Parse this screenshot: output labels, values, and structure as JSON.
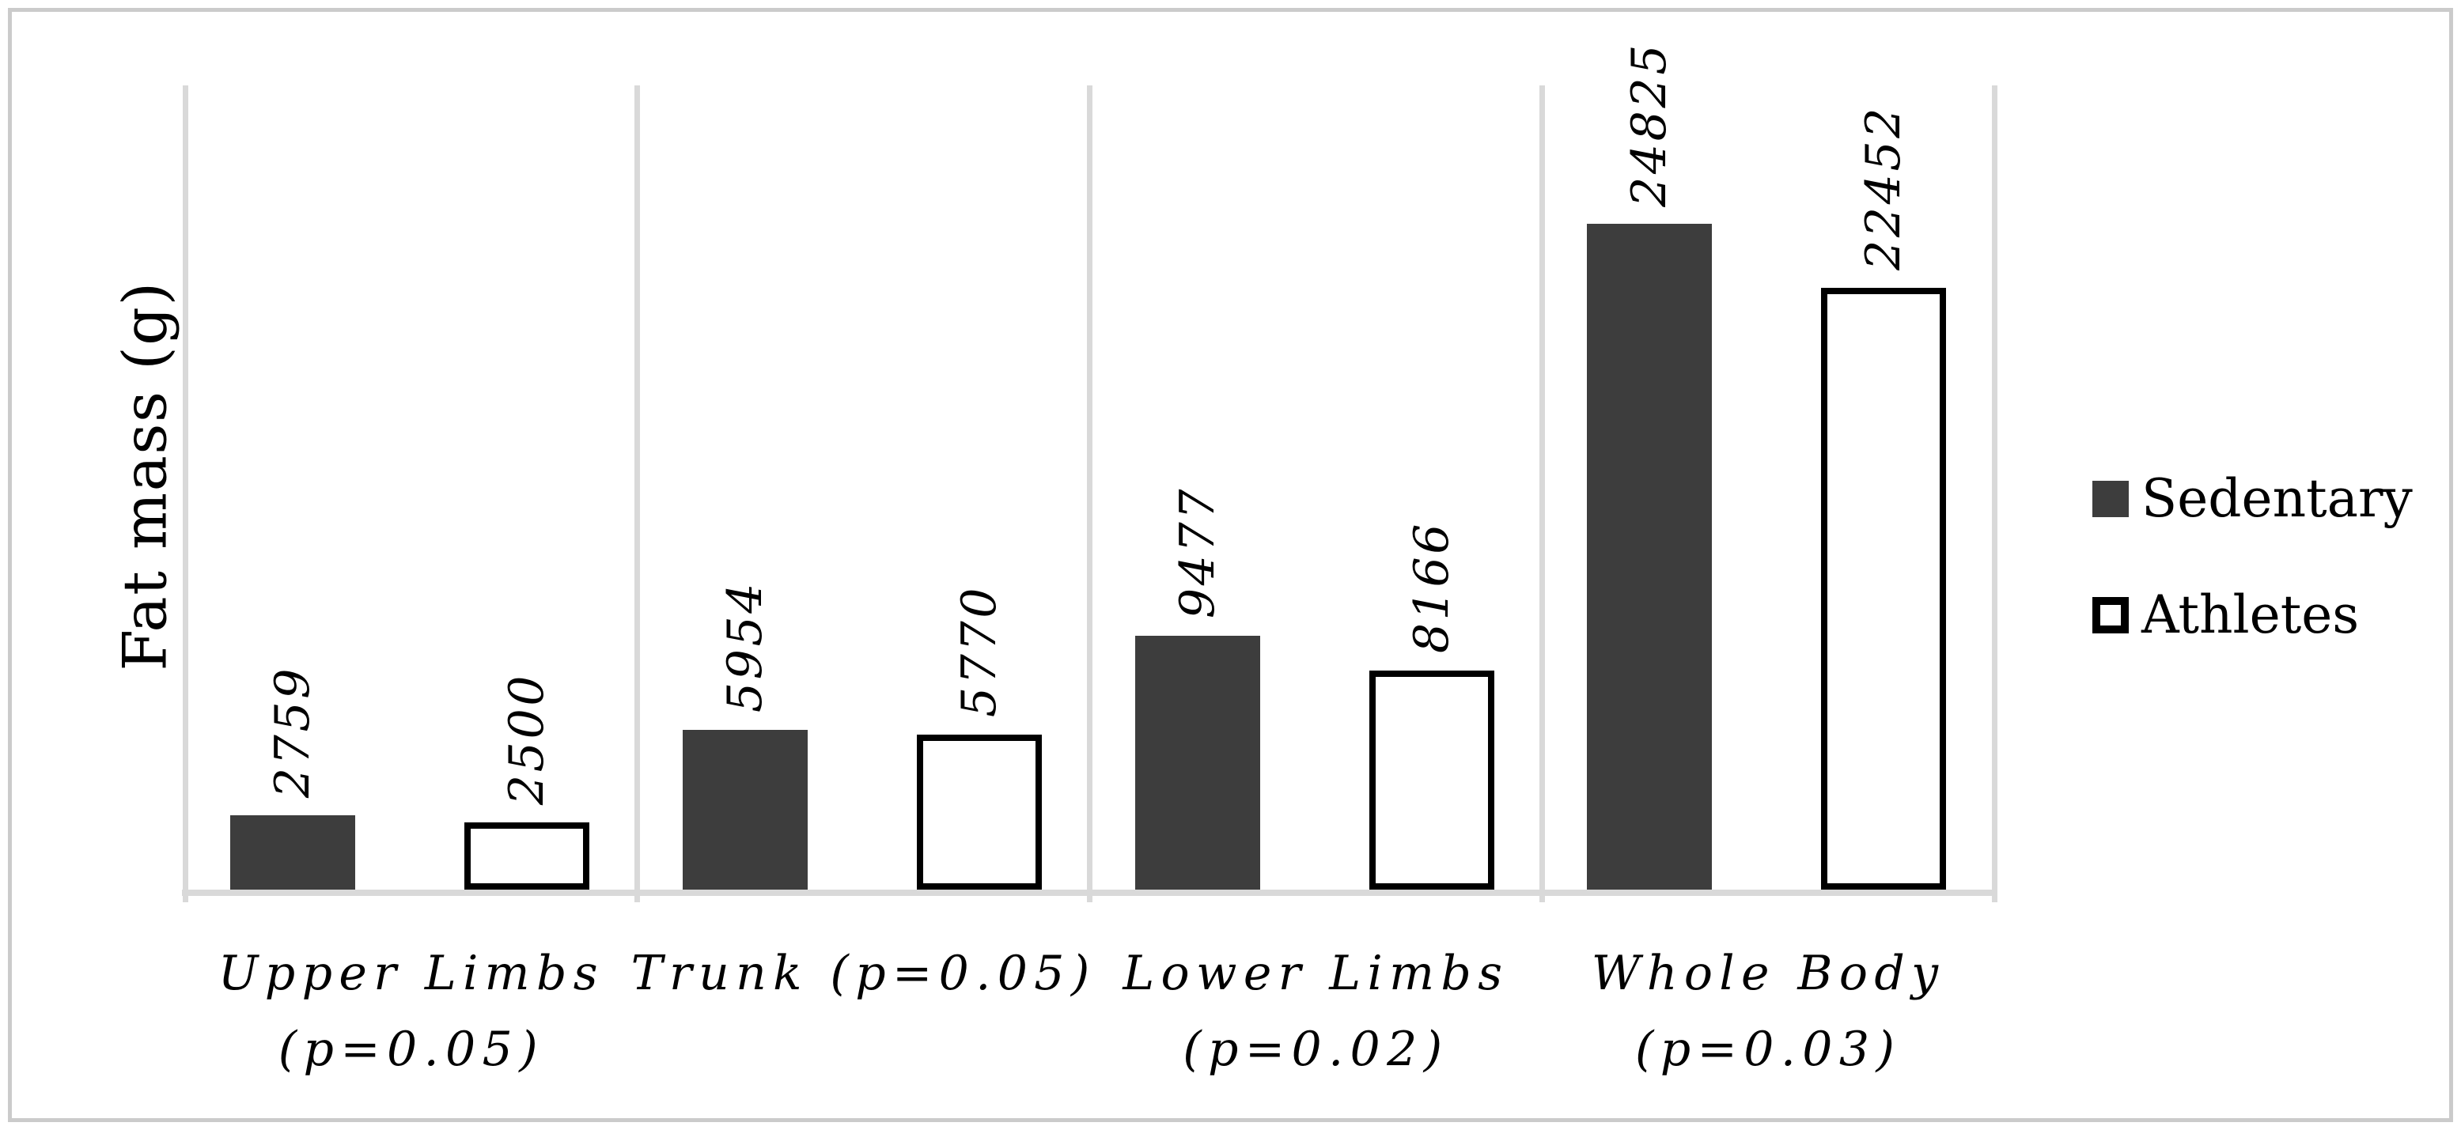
{
  "chart_data": {
    "type": "bar",
    "title": "",
    "ylabel": "Fat mass (g)",
    "xlabel": "",
    "ylim": [
      0,
      30000
    ],
    "grid": "vertical-category-separators",
    "legend_position": "right",
    "categories": [
      "Upper Limbs (p=0.05)",
      "Trunk (p=0.05)",
      "Lower Limbs (p=0.02)",
      "Whole Body (p=0.03)"
    ],
    "category_lines": [
      [
        "Upper Limbs",
        "(p=0.05)"
      ],
      [
        "Trunk (p=0.05)"
      ],
      [
        "Lower Limbs",
        "(p=0.02)"
      ],
      [
        "Whole Body",
        "(p=0.03)"
      ]
    ],
    "series": [
      {
        "name": "Sedentary",
        "values": [
          2759,
          5954,
          9477,
          24825
        ],
        "fill": "#3d3d3d",
        "border": "none"
      },
      {
        "name": "Athletes",
        "values": [
          2500,
          5770,
          8166,
          22452
        ],
        "fill": "#ffffff",
        "border": "#000000"
      }
    ],
    "colors": {
      "sedentary_fill": "#3d3d3d",
      "athletes_fill": "#ffffff",
      "athletes_border": "#000000",
      "gridline": "#d9d9d9",
      "frame_border": "#cbcbcb",
      "text": "#000000"
    }
  }
}
